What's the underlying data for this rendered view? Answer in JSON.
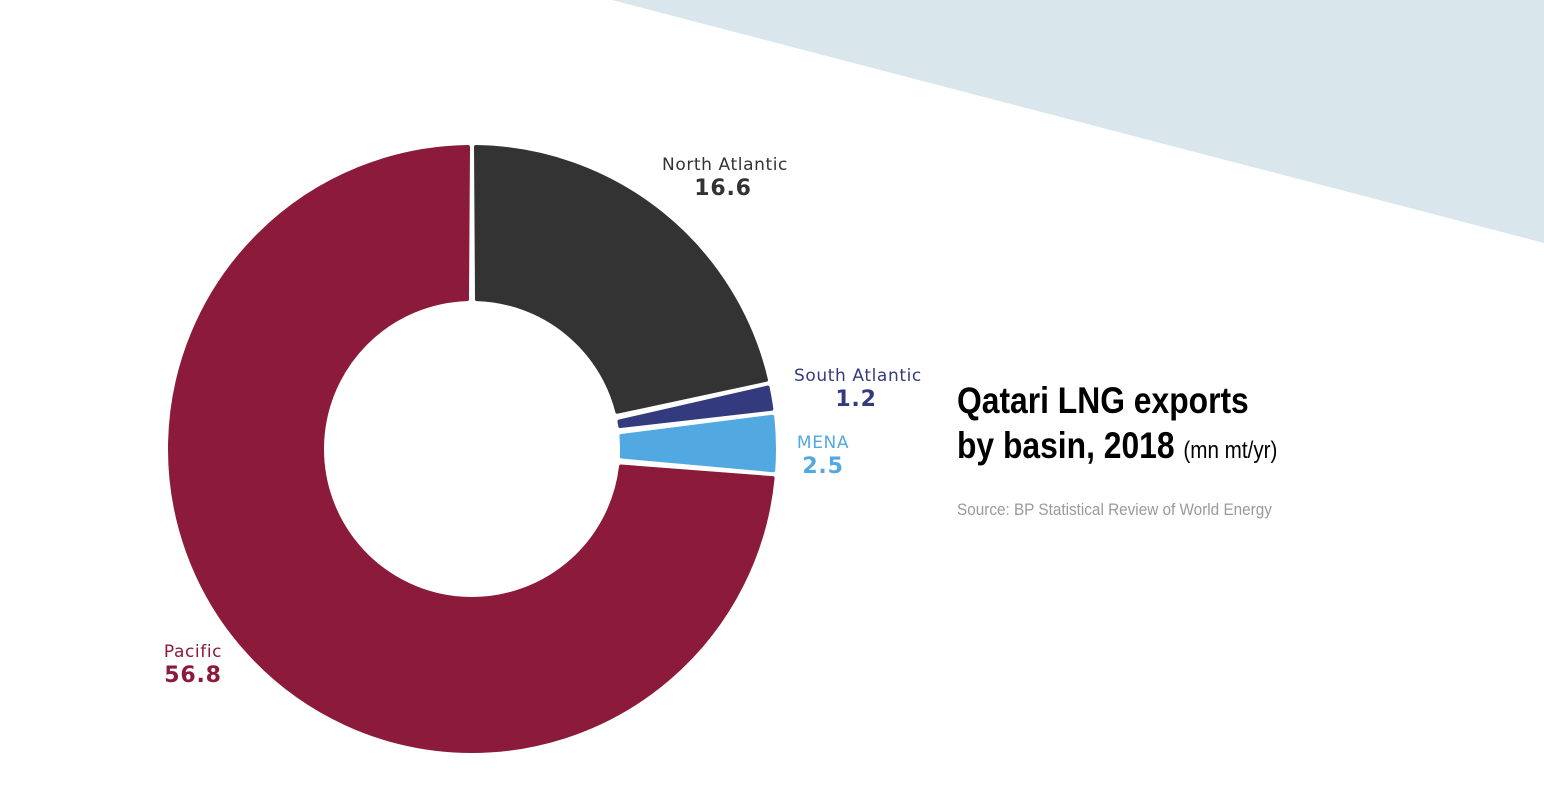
{
  "chart_data": {
    "type": "pie",
    "variant": "donut",
    "title_line1": "Qatari LNG exports",
    "title_line2": "by basin, 2018",
    "unit": "(mn mt/yr)",
    "source": "Source: BP Statistical Review of World Energy",
    "slices": [
      {
        "name": "North Atlantic",
        "value": 16.6,
        "value_label": "16.6",
        "color": "#333333"
      },
      {
        "name": "South Atlantic",
        "value": 1.2,
        "value_label": "1.2",
        "color": "#343a7e"
      },
      {
        "name": "MENA",
        "value": 2.5,
        "value_label": "2.5",
        "color": "#52a8e0"
      },
      {
        "name": "Pacific",
        "value": 56.8,
        "value_label": "56.8",
        "color": "#8b1a3b"
      }
    ],
    "background_accent": "#d9e6ec"
  }
}
